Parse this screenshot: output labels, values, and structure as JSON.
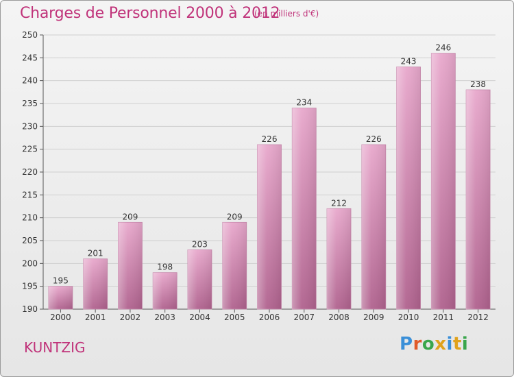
{
  "header": {
    "title": "Charges de Personnel 2000 à 2012",
    "subtitle": "(en milliers d'€)"
  },
  "footer": {
    "commune": "KUNTZIG",
    "brand": "Proxiti"
  },
  "colors": {
    "bar_top": "#e8a8cc",
    "bar_bottom": "#b0628e",
    "text_accent": "#c0337a",
    "logo_letters": [
      "#3a8fd8",
      "#e05a2a",
      "#3aa64c",
      "#e0a21c",
      "#3a8fd8",
      "#e0a21c",
      "#3aa64c"
    ]
  },
  "chart_data": {
    "type": "bar",
    "title": "Charges de Personnel 2000 à 2012",
    "categories": [
      "2000",
      "2001",
      "2002",
      "2003",
      "2004",
      "2005",
      "2006",
      "2007",
      "2008",
      "2009",
      "2010",
      "2011",
      "2012"
    ],
    "values": [
      195,
      201,
      209,
      198,
      203,
      209,
      226,
      234,
      212,
      226,
      243,
      246,
      238
    ],
    "ylim": [
      190,
      250
    ],
    "yticks": [
      190,
      195,
      200,
      205,
      210,
      215,
      220,
      225,
      230,
      235,
      240,
      245,
      250
    ],
    "grid": true,
    "data_labels": true,
    "xlabel": "",
    "ylabel": ""
  }
}
